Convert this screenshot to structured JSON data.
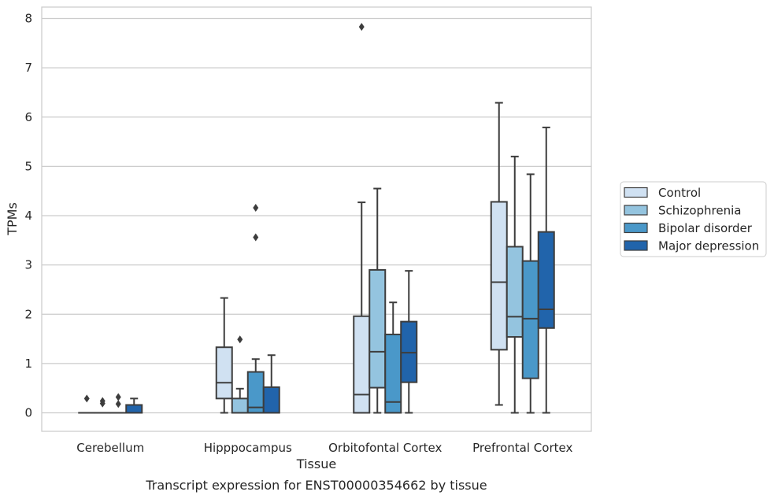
{
  "chart_data": {
    "type": "box",
    "title": "Transcript expression for ENST00000354662 by tissue",
    "xlabel": "Tissue",
    "ylabel": "TPMs",
    "ylim": [
      -0.38,
      8.22
    ],
    "yticks": [
      0,
      1,
      2,
      3,
      4,
      5,
      6,
      7,
      8
    ],
    "grid": "horizontal",
    "legend_position": "right",
    "categories": [
      "Cerebellum",
      "Hipppocampus",
      "Orbitofontal Cortex",
      "Prefrontal Cortex"
    ],
    "series": [
      {
        "name": "Control",
        "color": "#d0e1f2",
        "boxes": [
          {
            "whislo": 0,
            "q1": 0,
            "med": 0,
            "q3": 0,
            "whishi": 0,
            "fliers": [
              0.29
            ]
          },
          {
            "whislo": 0,
            "q1": 0.29,
            "med": 0.61,
            "q3": 1.33,
            "whishi": 2.33,
            "fliers": []
          },
          {
            "whislo": 0,
            "q1": 0,
            "med": 0.37,
            "q3": 1.96,
            "whishi": 4.27,
            "fliers": [
              7.83
            ]
          },
          {
            "whislo": 0.16,
            "q1": 1.28,
            "med": 2.65,
            "q3": 4.28,
            "whishi": 6.29,
            "fliers": []
          }
        ]
      },
      {
        "name": "Schizophrenia",
        "color": "#94c4df",
        "boxes": [
          {
            "whislo": 0,
            "q1": 0,
            "med": 0,
            "q3": 0,
            "whishi": 0,
            "fliers": [
              0.19,
              0.24
            ]
          },
          {
            "whislo": 0,
            "q1": 0,
            "med": 0,
            "q3": 0.29,
            "whishi": 0.49,
            "fliers": [
              1.49
            ]
          },
          {
            "whislo": 0,
            "q1": 0.51,
            "med": 1.24,
            "q3": 2.9,
            "whishi": 4.55,
            "fliers": []
          },
          {
            "whislo": 0,
            "q1": 1.54,
            "med": 1.95,
            "q3": 3.37,
            "whishi": 5.2,
            "fliers": []
          }
        ]
      },
      {
        "name": "Bipolar disorder",
        "color": "#4a98c9",
        "boxes": [
          {
            "whislo": 0,
            "q1": 0,
            "med": 0,
            "q3": 0,
            "whishi": 0,
            "fliers": [
              0.18,
              0.32
            ]
          },
          {
            "whislo": 0,
            "q1": 0,
            "med": 0.11,
            "q3": 0.83,
            "whishi": 1.09,
            "fliers": [
              3.56,
              4.16
            ]
          },
          {
            "whislo": 0,
            "q1": 0,
            "med": 0.22,
            "q3": 1.59,
            "whishi": 2.24,
            "fliers": []
          },
          {
            "whislo": 0,
            "q1": 0.7,
            "med": 1.91,
            "q3": 3.08,
            "whishi": 4.84,
            "fliers": []
          }
        ]
      },
      {
        "name": "Major depression",
        "color": "#2164ab",
        "boxes": [
          {
            "whislo": 0,
            "q1": 0,
            "med": 0,
            "q3": 0.16,
            "whishi": 0.29,
            "fliers": []
          },
          {
            "whislo": 0,
            "q1": 0,
            "med": 0,
            "q3": 0.52,
            "whishi": 1.17,
            "fliers": []
          },
          {
            "whislo": 0,
            "q1": 0.62,
            "med": 1.22,
            "q3": 1.85,
            "whishi": 2.88,
            "fliers": []
          },
          {
            "whislo": 0,
            "q1": 1.72,
            "med": 2.1,
            "q3": 3.67,
            "whishi": 5.79,
            "fliers": []
          }
        ]
      }
    ]
  }
}
